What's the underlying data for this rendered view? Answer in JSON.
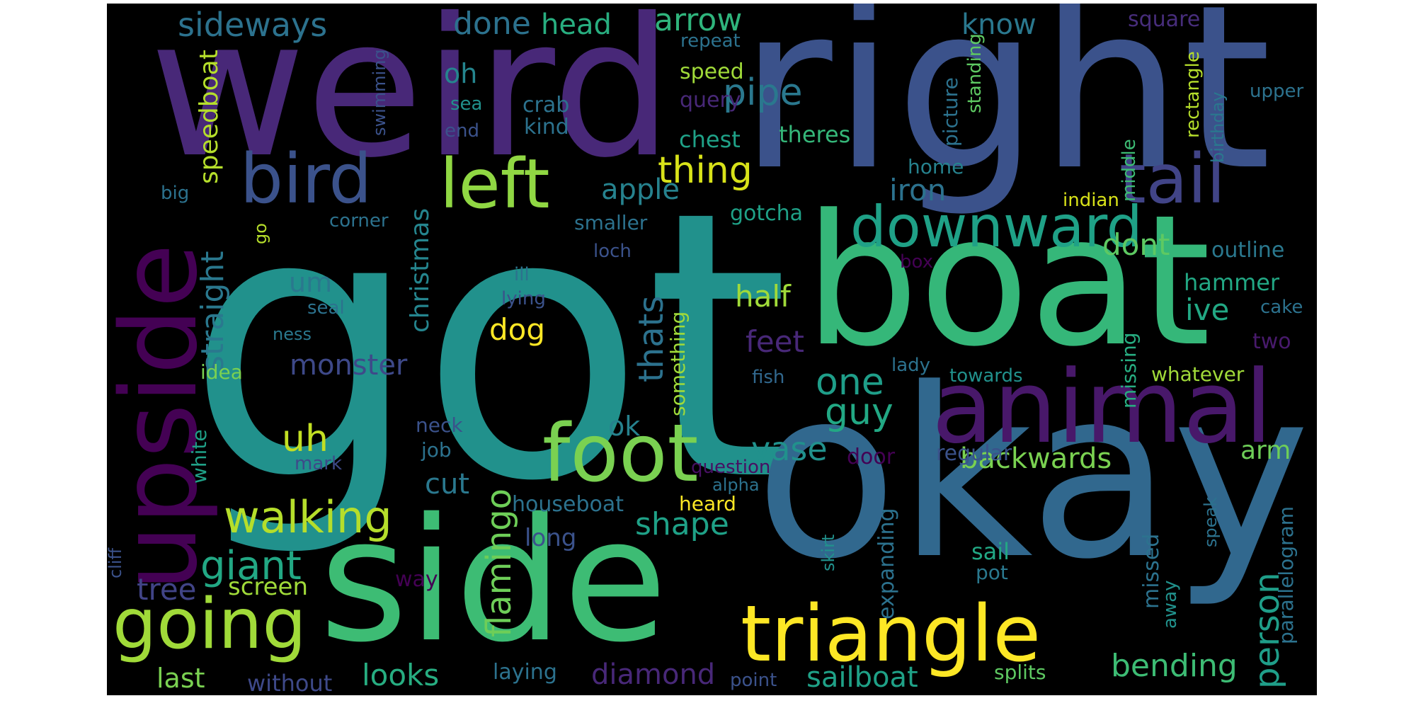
{
  "words": [
    {
      "text": "got",
      "color": "#21918c"
    },
    {
      "text": "right",
      "color": "#3b528b"
    },
    {
      "text": "weird",
      "color": "#482878"
    },
    {
      "text": "okay",
      "color": "#31688e"
    },
    {
      "text": "boat",
      "color": "#35b779"
    },
    {
      "text": "side",
      "color": "#3dbc74"
    },
    {
      "text": "upside",
      "color": "#440154"
    },
    {
      "text": "animal",
      "color": "#48186a"
    },
    {
      "text": "triangle",
      "color": "#fde725"
    },
    {
      "text": "foot",
      "color": "#7ad151"
    },
    {
      "text": "going",
      "color": "#a0da39"
    },
    {
      "text": "left",
      "color": "#90d743"
    },
    {
      "text": "downward",
      "color": "#1fa187"
    },
    {
      "text": "tail",
      "color": "#414487"
    },
    {
      "text": "bird",
      "color": "#3b528b"
    },
    {
      "text": "walking",
      "color": "#b5de2b"
    },
    {
      "text": "giant",
      "color": "#22a884"
    },
    {
      "text": "person",
      "color": "#1f9e89"
    },
    {
      "text": "flamingo",
      "color": "#6ece58"
    },
    {
      "text": "straight",
      "color": "#2a788e"
    },
    {
      "text": "sideways",
      "color": "#2c728e"
    },
    {
      "text": "done",
      "color": "#2c728e"
    },
    {
      "text": "head",
      "color": "#28ae80"
    },
    {
      "text": "arrow",
      "color": "#2fb47c"
    },
    {
      "text": "know",
      "color": "#2a788e"
    },
    {
      "text": "square",
      "color": "#472d7b"
    },
    {
      "text": "oh",
      "color": "#25858e"
    },
    {
      "text": "pipe",
      "color": "#2a788e"
    },
    {
      "text": "thing",
      "color": "#d8e219"
    },
    {
      "text": "apple",
      "color": "#26828e"
    },
    {
      "text": "iron",
      "color": "#2c728e"
    },
    {
      "text": "speedboat",
      "color": "#b5de2b"
    },
    {
      "text": "christmas",
      "color": "#25858e"
    },
    {
      "text": "thats",
      "color": "#2c728e"
    },
    {
      "text": "dont",
      "color": "#5ec962"
    },
    {
      "text": "half",
      "color": "#a0da39"
    },
    {
      "text": "feet",
      "color": "#482878"
    },
    {
      "text": "one",
      "color": "#1f9e89"
    },
    {
      "text": "guy",
      "color": "#22a884"
    },
    {
      "text": "um",
      "color": "#2a788e"
    },
    {
      "text": "uh",
      "color": "#c2df23"
    },
    {
      "text": "dog",
      "color": "#fde725"
    },
    {
      "text": "monster",
      "color": "#3e4989"
    },
    {
      "text": "ok",
      "color": "#26828e"
    },
    {
      "text": "vase",
      "color": "#21918c"
    },
    {
      "text": "backwards",
      "color": "#7ad151"
    },
    {
      "text": "arm",
      "color": "#6ece58"
    },
    {
      "text": "ive",
      "color": "#22a884"
    },
    {
      "text": "hammer",
      "color": "#22a884"
    },
    {
      "text": "outline",
      "color": "#2a788e"
    },
    {
      "text": "cut",
      "color": "#2a788e"
    },
    {
      "text": "shape",
      "color": "#1fa187"
    },
    {
      "text": "tree",
      "color": "#414487"
    },
    {
      "text": "screen",
      "color": "#a0da39"
    },
    {
      "text": "looks",
      "color": "#27ad81"
    },
    {
      "text": "last",
      "color": "#7ad151"
    },
    {
      "text": "without",
      "color": "#3e4989"
    },
    {
      "text": "diamond",
      "color": "#482878"
    },
    {
      "text": "sailboat",
      "color": "#1fa187"
    },
    {
      "text": "bending",
      "color": "#3dbc74"
    },
    {
      "text": "laying",
      "color": "#2c728e"
    },
    {
      "text": "point",
      "color": "#3b528b"
    },
    {
      "text": "splits",
      "color": "#5ec962"
    },
    {
      "text": "houseboat",
      "color": "#2c728e"
    },
    {
      "text": "heard",
      "color": "#fde725"
    },
    {
      "text": "long",
      "color": "#3b528b"
    },
    {
      "text": "way",
      "color": "#440154"
    },
    {
      "text": "sail",
      "color": "#22a884"
    },
    {
      "text": "pot",
      "color": "#2a788e"
    },
    {
      "text": "regular",
      "color": "#3b528b"
    },
    {
      "text": "door",
      "color": "#440154"
    },
    {
      "text": "question",
      "color": "#471063"
    },
    {
      "text": "alpha",
      "color": "#2c728e"
    },
    {
      "text": "job",
      "color": "#2c728e"
    },
    {
      "text": "neck",
      "color": "#3b528b"
    },
    {
      "text": "mark",
      "color": "#3e4989"
    },
    {
      "text": "idea",
      "color": "#7ad151"
    },
    {
      "text": "white",
      "color": "#1fa187"
    },
    {
      "text": "ness",
      "color": "#2a788e"
    },
    {
      "text": "seal",
      "color": "#2c728e"
    },
    {
      "text": "ill",
      "color": "#2c728e"
    },
    {
      "text": "lying",
      "color": "#3b528b"
    },
    {
      "text": "loch",
      "color": "#3b528b"
    },
    {
      "text": "something",
      "color": "#a0da39"
    },
    {
      "text": "smaller",
      "color": "#2c728e"
    },
    {
      "text": "gotcha",
      "color": "#1fa187"
    },
    {
      "text": "home",
      "color": "#26828e"
    },
    {
      "text": "indian",
      "color": "#d8e219"
    },
    {
      "text": "box",
      "color": "#440154"
    },
    {
      "text": "cake",
      "color": "#2c728e"
    },
    {
      "text": "two",
      "color": "#481a6c"
    },
    {
      "text": "whatever",
      "color": "#a0da39"
    },
    {
      "text": "towards",
      "color": "#21918c"
    },
    {
      "text": "lady",
      "color": "#2c728e"
    },
    {
      "text": "fish",
      "color": "#31688e"
    },
    {
      "text": "missing",
      "color": "#27ad81"
    },
    {
      "text": "middle",
      "color": "#3dbc74"
    },
    {
      "text": "picture",
      "color": "#2c728e"
    },
    {
      "text": "standing",
      "color": "#5ec962"
    },
    {
      "text": "rectangle",
      "color": "#b5de2b"
    },
    {
      "text": "birthday",
      "color": "#2a788e"
    },
    {
      "text": "upper",
      "color": "#2c728e"
    },
    {
      "text": "repeat",
      "color": "#2c728e"
    },
    {
      "text": "speed",
      "color": "#a0da39"
    },
    {
      "text": "query",
      "color": "#482878"
    },
    {
      "text": "chest",
      "color": "#1fa187"
    },
    {
      "text": "theres",
      "color": "#35b779"
    },
    {
      "text": "crab",
      "color": "#2c728e"
    },
    {
      "text": "kind",
      "color": "#2c728e"
    },
    {
      "text": "sea",
      "color": "#21918c"
    },
    {
      "text": "end",
      "color": "#3b528b"
    },
    {
      "text": "swimming",
      "color": "#3b528b"
    },
    {
      "text": "corner",
      "color": "#2c728e"
    },
    {
      "text": "big",
      "color": "#2c728e"
    },
    {
      "text": "go",
      "color": "#b5de2b"
    },
    {
      "text": "expanding",
      "color": "#2c728e"
    },
    {
      "text": "missed",
      "color": "#2c728e"
    },
    {
      "text": "away",
      "color": "#21918c"
    },
    {
      "text": "speak",
      "color": "#2c728e"
    },
    {
      "text": "parallelogram",
      "color": "#2c728e"
    },
    {
      "text": "skirt",
      "color": "#21918c"
    },
    {
      "text": "cliff",
      "color": "#3b528b"
    }
  ]
}
